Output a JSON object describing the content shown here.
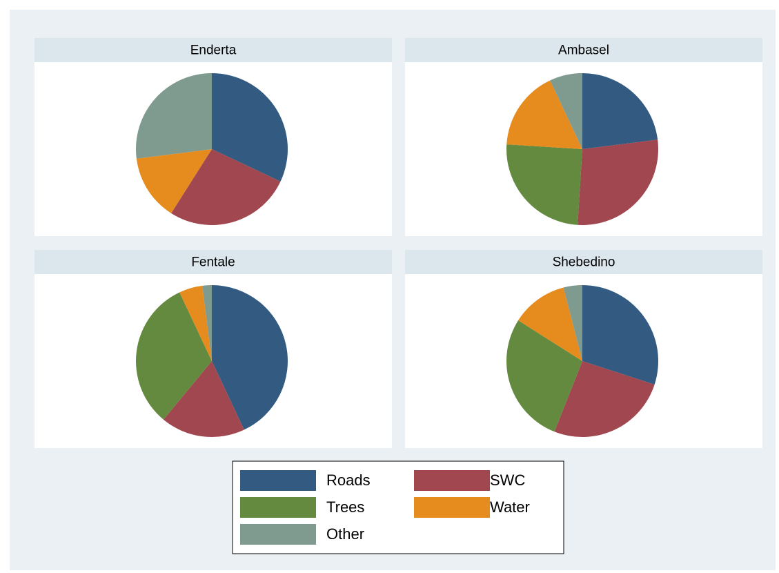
{
  "chart_data": [
    {
      "type": "pie",
      "title": "Enderta",
      "categories": [
        "Roads",
        "SWC",
        "Trees",
        "Water",
        "Other"
      ],
      "values": [
        32,
        27,
        0,
        14,
        27
      ],
      "colors": [
        "#335a80",
        "#a0474f",
        "#648a40",
        "#e68c1f",
        "#7f9a8f"
      ]
    },
    {
      "type": "pie",
      "title": "Ambasel",
      "categories": [
        "Roads",
        "SWC",
        "Trees",
        "Water",
        "Other"
      ],
      "values": [
        23,
        28,
        25,
        17,
        7
      ],
      "colors": [
        "#335a80",
        "#a0474f",
        "#648a40",
        "#e68c1f",
        "#7f9a8f"
      ]
    },
    {
      "type": "pie",
      "title": "Fentale",
      "categories": [
        "Roads",
        "SWC",
        "Trees",
        "Water",
        "Other"
      ],
      "values": [
        43,
        18,
        32,
        5,
        2
      ],
      "colors": [
        "#335a80",
        "#a0474f",
        "#648a40",
        "#e68c1f",
        "#7f9a8f"
      ]
    },
    {
      "type": "pie",
      "title": "Shebedino",
      "categories": [
        "Roads",
        "SWC",
        "Trees",
        "Water",
        "Other"
      ],
      "values": [
        30,
        26,
        28,
        12,
        4
      ],
      "colors": [
        "#335a80",
        "#a0474f",
        "#648a40",
        "#e68c1f",
        "#7f9a8f"
      ]
    }
  ]
}
